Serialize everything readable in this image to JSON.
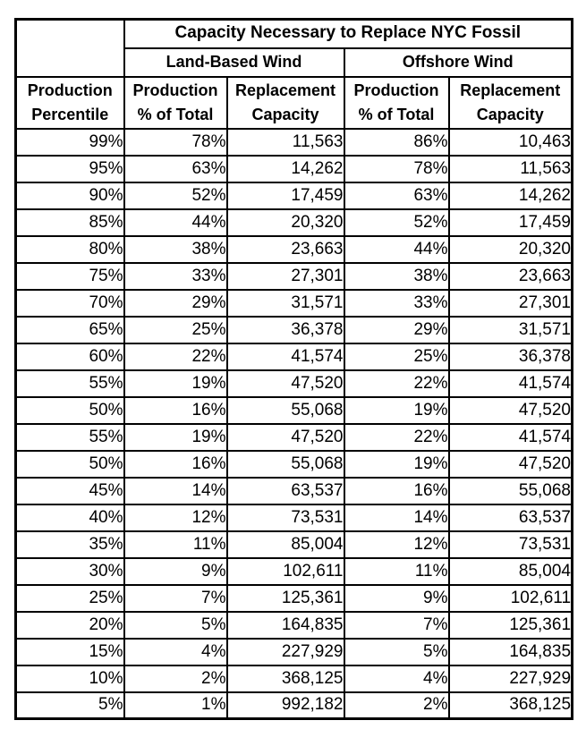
{
  "chart_data": {
    "type": "table",
    "title": "Capacity Necessary to Replace NYC Fossil",
    "group_headers": [
      "Land-Based Wind",
      "Offshore Wind"
    ],
    "column_headers": {
      "percentile": [
        "Production",
        "Percentile"
      ],
      "production_pct": [
        "Production",
        "% of Total"
      ],
      "replacement_capacity": [
        "Replacement",
        "Capacity"
      ]
    },
    "columns_flat": [
      "Production Percentile",
      "Land-Based Wind Production % of Total",
      "Land-Based Wind Replacement Capacity",
      "Offshore Wind Production % of Total",
      "Offshore Wind Replacement Capacity"
    ],
    "rows": [
      [
        "99%",
        "78%",
        "11,563",
        "86%",
        "10,463"
      ],
      [
        "95%",
        "63%",
        "14,262",
        "78%",
        "11,563"
      ],
      [
        "90%",
        "52%",
        "17,459",
        "63%",
        "14,262"
      ],
      [
        "85%",
        "44%",
        "20,320",
        "52%",
        "17,459"
      ],
      [
        "80%",
        "38%",
        "23,663",
        "44%",
        "20,320"
      ],
      [
        "75%",
        "33%",
        "27,301",
        "38%",
        "23,663"
      ],
      [
        "70%",
        "29%",
        "31,571",
        "33%",
        "27,301"
      ],
      [
        "65%",
        "25%",
        "36,378",
        "29%",
        "31,571"
      ],
      [
        "60%",
        "22%",
        "41,574",
        "25%",
        "36,378"
      ],
      [
        "55%",
        "19%",
        "47,520",
        "22%",
        "41,574"
      ],
      [
        "50%",
        "16%",
        "55,068",
        "19%",
        "47,520"
      ],
      [
        "55%",
        "19%",
        "47,520",
        "22%",
        "41,574"
      ],
      [
        "50%",
        "16%",
        "55,068",
        "19%",
        "47,520"
      ],
      [
        "45%",
        "14%",
        "63,537",
        "16%",
        "55,068"
      ],
      [
        "40%",
        "12%",
        "73,531",
        "14%",
        "63,537"
      ],
      [
        "35%",
        "11%",
        "85,004",
        "12%",
        "73,531"
      ],
      [
        "30%",
        "9%",
        "102,611",
        "11%",
        "85,004"
      ],
      [
        "25%",
        "7%",
        "125,361",
        "9%",
        "102,611"
      ],
      [
        "20%",
        "5%",
        "164,835",
        "7%",
        "125,361"
      ],
      [
        "15%",
        "4%",
        "227,929",
        "5%",
        "164,835"
      ],
      [
        "10%",
        "2%",
        "368,125",
        "4%",
        "227,929"
      ],
      [
        "5%",
        "1%",
        "992,182",
        "2%",
        "368,125"
      ]
    ],
    "colors": {
      "border": "#000000",
      "text": "#000000",
      "background": "#ffffff"
    }
  }
}
